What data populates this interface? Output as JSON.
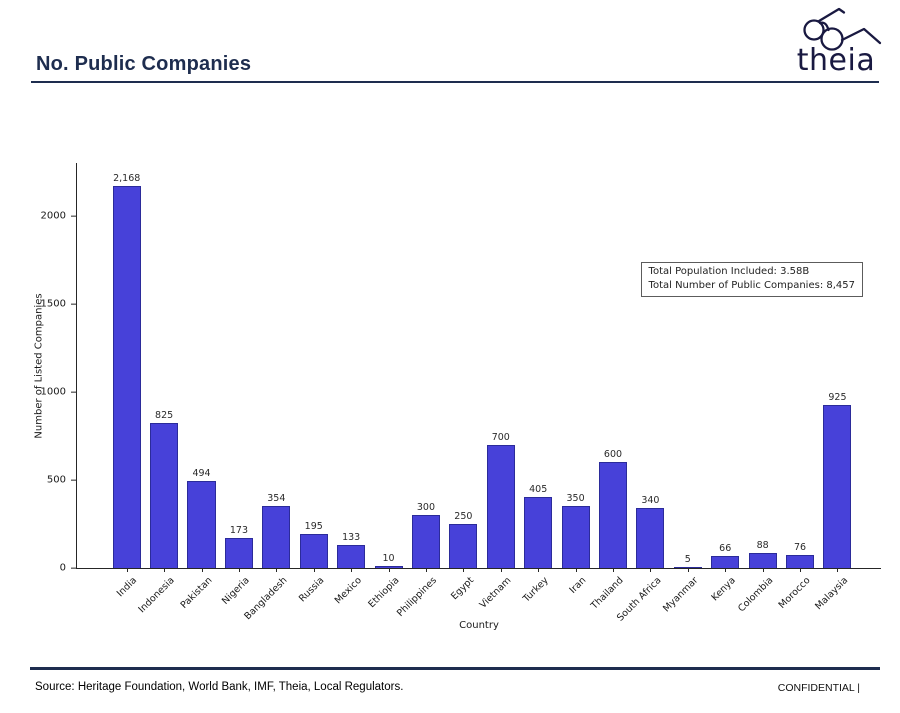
{
  "header": {
    "title": "No. Public Companies",
    "logo_text": "theia"
  },
  "chart_data": {
    "type": "bar",
    "title": "",
    "xlabel": "Country",
    "ylabel": "Number of Listed Companies",
    "categories": [
      "India",
      "Indonesia",
      "Pakistan",
      "Nigeria",
      "Bangladesh",
      "Russia",
      "Mexico",
      "Ethiopia",
      "Philippines",
      "Egypt",
      "Vietnam",
      "Turkey",
      "Iran",
      "Thailand",
      "South Africa",
      "Myanmar",
      "Kenya",
      "Colombia",
      "Morocco",
      "Malaysia"
    ],
    "values": [
      2168,
      825,
      494,
      173,
      354,
      195,
      133,
      10,
      300,
      250,
      700,
      405,
      350,
      600,
      340,
      5,
      66,
      88,
      76,
      925
    ],
    "value_labels": [
      "2,168",
      "825",
      "494",
      "173",
      "354",
      "195",
      "133",
      "10",
      "300",
      "250",
      "700",
      "405",
      "350",
      "600",
      "340",
      "5",
      "66",
      "88",
      "76",
      "925"
    ],
    "yticks": [
      0,
      500,
      1000,
      1500,
      2000
    ],
    "ytick_labels": [
      "0",
      "500",
      "1000",
      "1500",
      "2000"
    ],
    "ylim": [
      0,
      2300
    ],
    "grid": "off",
    "legend": "none",
    "bar_color": "#4741d9",
    "bar_edge_color": "#2b2b9a",
    "annotation": {
      "line1": "Total Population Included: 3.58B",
      "line2": "Total Number of Public Companies: 8,457"
    }
  },
  "footer": {
    "source": "Source: Heritage Foundation, World Bank, IMF, Theia, Local Regulators.",
    "confidential": "CONFIDENTIAL |"
  },
  "colors": {
    "accent_navy": "#1e2d4f",
    "logo_navy": "#191941"
  }
}
